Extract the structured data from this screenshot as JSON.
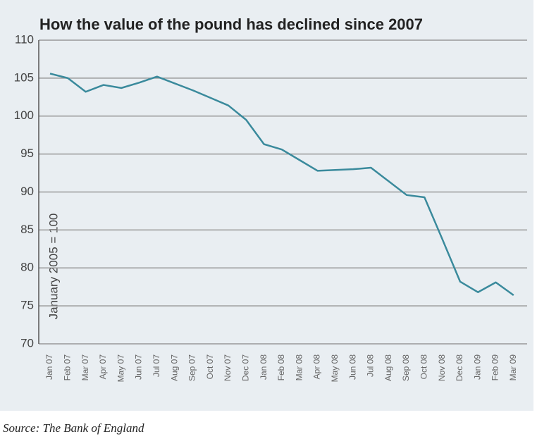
{
  "chart_data": {
    "type": "line",
    "title": "How the value of the pound has declined since 2007",
    "y_label": "January 2005 = 100",
    "source": "Source: The Bank of England",
    "categories": [
      "Jan 07",
      "Feb 07",
      "Mar 07",
      "Apr 07",
      "May 07",
      "Jun 07",
      "Jul 07",
      "Aug 07",
      "Sep 07",
      "Oct 07",
      "Nov 07",
      "Dec 07",
      "Jan 08",
      "Feb 08",
      "Mar 08",
      "Apr 08",
      "May 08",
      "Jun 08",
      "Jul 08",
      "Aug 08",
      "Sep 08",
      "Oct 08",
      "Nov 08",
      "Dec 08",
      "Jan 09",
      "Feb 09",
      "Mar 09"
    ],
    "values": [
      105.6,
      105.0,
      103.2,
      104.1,
      103.7,
      104.4,
      105.2,
      104.3,
      103.4,
      102.4,
      101.4,
      99.5,
      96.3,
      95.6,
      94.2,
      92.8,
      92.9,
      93.0,
      93.2,
      91.4,
      89.6,
      89.3,
      83.8,
      78.2,
      76.8,
      78.1,
      76.4
    ],
    "color": "#3a8a9c",
    "ylim": [
      70,
      110
    ],
    "yticks": [
      70,
      75,
      80,
      85,
      90,
      95,
      100,
      105,
      110
    ],
    "grid": true
  }
}
